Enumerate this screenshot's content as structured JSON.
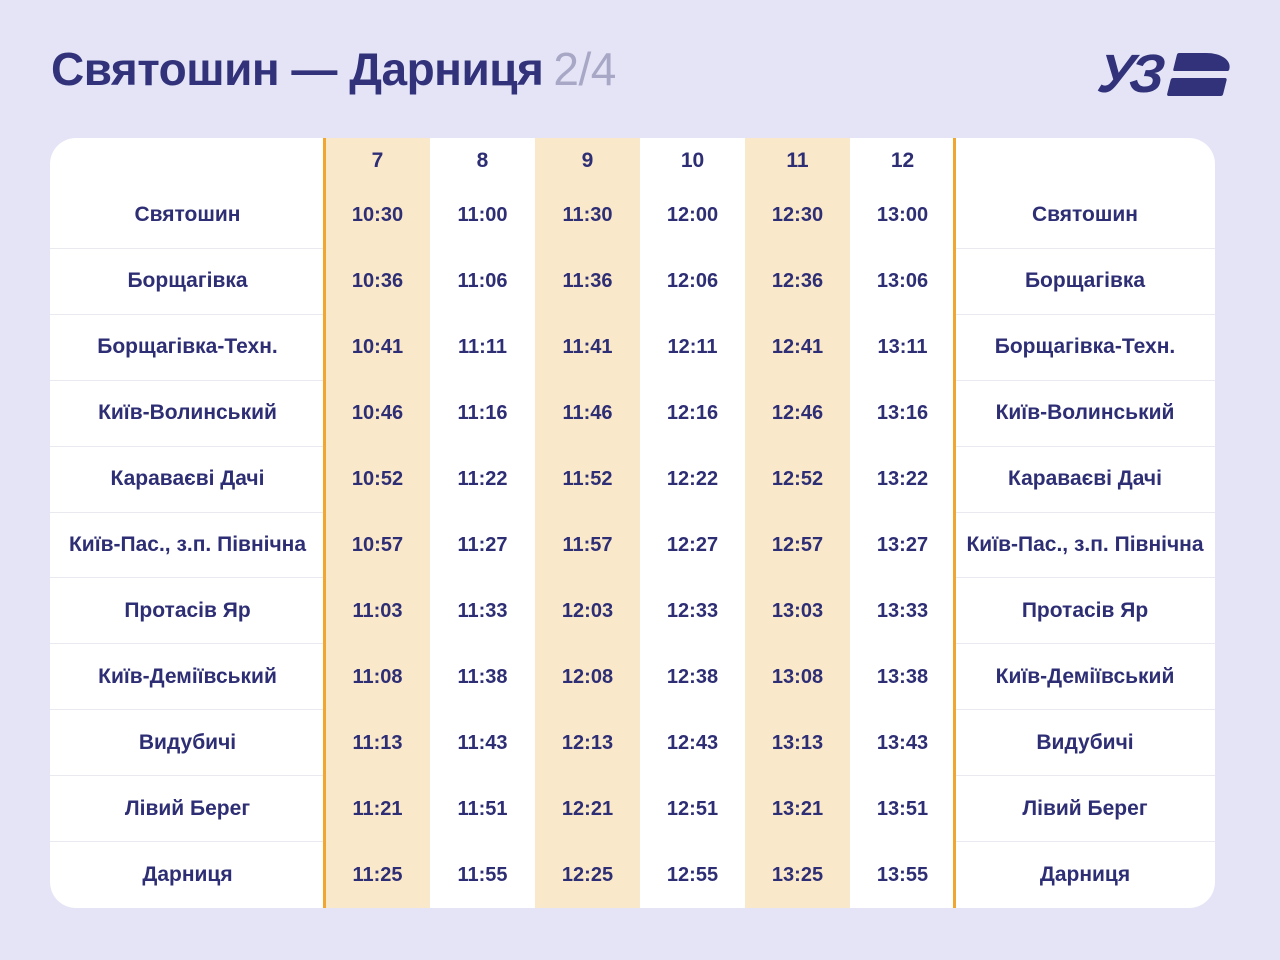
{
  "header": {
    "title": "Святошин — Дарниця",
    "page": "2/4",
    "logo_text": "УЗ"
  },
  "table": {
    "train_numbers": [
      "7",
      "8",
      "9",
      "10",
      "11",
      "12"
    ],
    "highlighted_trains": [
      "7",
      "9",
      "11"
    ],
    "rows": [
      {
        "station": "Святошин",
        "times": [
          "10:30",
          "11:00",
          "11:30",
          "12:00",
          "12:30",
          "13:00"
        ]
      },
      {
        "station": "Борщагівка",
        "times": [
          "10:36",
          "11:06",
          "11:36",
          "12:06",
          "12:36",
          "13:06"
        ]
      },
      {
        "station": "Борщагівка-Техн.",
        "times": [
          "10:41",
          "11:11",
          "11:41",
          "12:11",
          "12:41",
          "13:11"
        ]
      },
      {
        "station": "Київ-Волинський",
        "times": [
          "10:46",
          "11:16",
          "11:46",
          "12:16",
          "12:46",
          "13:16"
        ]
      },
      {
        "station": "Караваєві Дачі",
        "times": [
          "10:52",
          "11:22",
          "11:52",
          "12:22",
          "12:52",
          "13:22"
        ]
      },
      {
        "station": "Київ-Пас., з.п. Північна",
        "times": [
          "10:57",
          "11:27",
          "11:57",
          "12:27",
          "12:57",
          "13:27"
        ]
      },
      {
        "station": "Протасів Яр",
        "times": [
          "11:03",
          "11:33",
          "12:03",
          "12:33",
          "13:03",
          "13:33"
        ]
      },
      {
        "station": "Київ-Деміївський",
        "times": [
          "11:08",
          "11:38",
          "12:08",
          "12:38",
          "13:08",
          "13:38"
        ]
      },
      {
        "station": "Видубичі",
        "times": [
          "11:13",
          "11:43",
          "12:13",
          "12:43",
          "13:13",
          "13:43"
        ]
      },
      {
        "station": "Лівий Берег",
        "times": [
          "11:21",
          "11:51",
          "12:21",
          "12:51",
          "13:21",
          "13:51"
        ]
      },
      {
        "station": "Дарниця",
        "times": [
          "11:25",
          "11:55",
          "12:25",
          "12:55",
          "13:25",
          "13:55"
        ]
      }
    ]
  },
  "colors": {
    "background": "#e4e4f6",
    "navy": "#32327b",
    "page_number_gray": "#a8a8c6",
    "column_highlight_peach": "#fae8cb",
    "divider_orange": "#f0a630",
    "row_separator": "#e9e9f0",
    "card_white": "#ffffff"
  }
}
